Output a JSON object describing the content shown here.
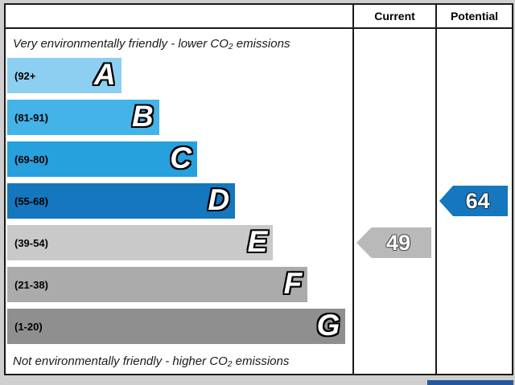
{
  "header": {
    "current_label": "Current",
    "potential_label": "Potential"
  },
  "captions": {
    "top": "Very environmentally friendly - lower CO₂ emissions",
    "bottom": "Not environmentally friendly - higher CO₂ emissions"
  },
  "chart_data": {
    "type": "bar",
    "subtype": "epc-environmental-impact-rating",
    "bands": [
      {
        "letter": "A",
        "range_label": "(92+",
        "range": [
          92,
          100
        ],
        "color": "#8dcff1",
        "width_pct": 33
      },
      {
        "letter": "B",
        "range_label": "(81-91)",
        "range": [
          81,
          91
        ],
        "color": "#44b3e8",
        "width_pct": 44
      },
      {
        "letter": "C",
        "range_label": "(69-80)",
        "range": [
          69,
          80
        ],
        "color": "#27a0de",
        "width_pct": 55
      },
      {
        "letter": "D",
        "range_label": "(55-68)",
        "range": [
          55,
          68
        ],
        "color": "#1577be",
        "width_pct": 66
      },
      {
        "letter": "E",
        "range_label": "(39-54)",
        "range": [
          39,
          54
        ],
        "color": "#c9c9c9",
        "width_pct": 77
      },
      {
        "letter": "F",
        "range_label": "(21-38)",
        "range": [
          21,
          38
        ],
        "color": "#ababab",
        "width_pct": 87
      },
      {
        "letter": "G",
        "range_label": "(1-20)",
        "range": [
          1,
          20
        ],
        "color": "#8f8f8f",
        "width_pct": 98
      }
    ],
    "current": {
      "value": 49,
      "band": "E",
      "band_index": 4,
      "color": "#b9b9b9"
    },
    "potential": {
      "value": 64,
      "band": "D",
      "band_index": 3,
      "color": "#1577be"
    }
  },
  "footer": {
    "eu_strip_color": "#24589c"
  }
}
